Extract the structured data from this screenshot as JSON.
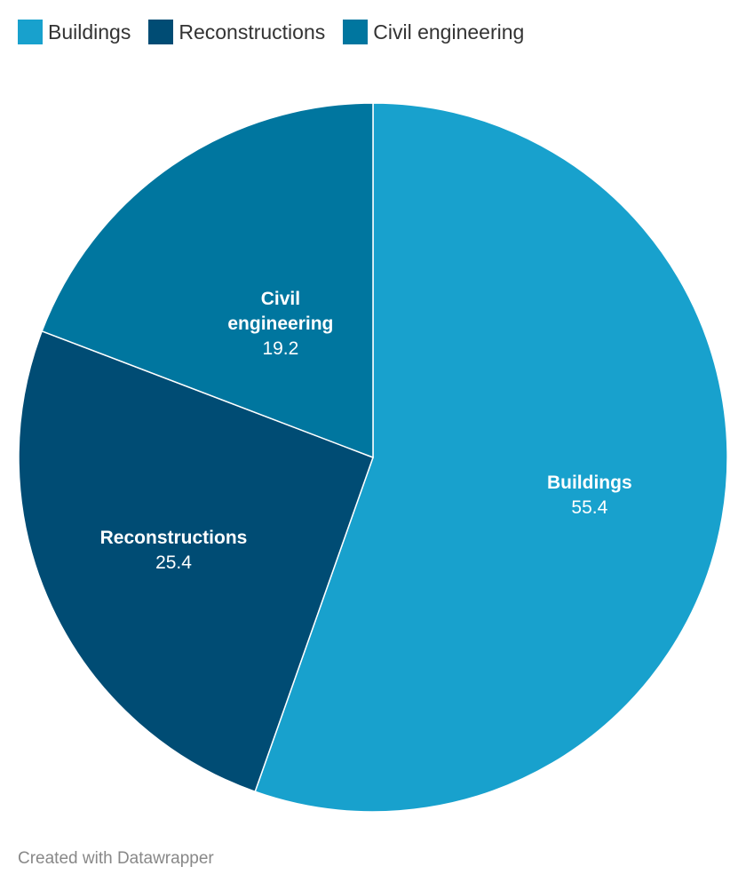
{
  "chart_data": {
    "type": "pie",
    "legend_position": "top-left",
    "slices": [
      {
        "name": "Buildings",
        "label_lines": [
          "Buildings"
        ],
        "value": 55.4,
        "value_label": "55.4",
        "color": "#18a1cd"
      },
      {
        "name": "Reconstructions",
        "label_lines": [
          "Reconstructions"
        ],
        "value": 25.4,
        "value_label": "25.4",
        "color": "#004c74"
      },
      {
        "name": "Civil engineering",
        "label_lines": [
          "Civil",
          "engineering"
        ],
        "value": 19.2,
        "value_label": "19.2",
        "color": "#00769f"
      }
    ]
  },
  "footer": {
    "credit": "Created with Datawrapper"
  }
}
